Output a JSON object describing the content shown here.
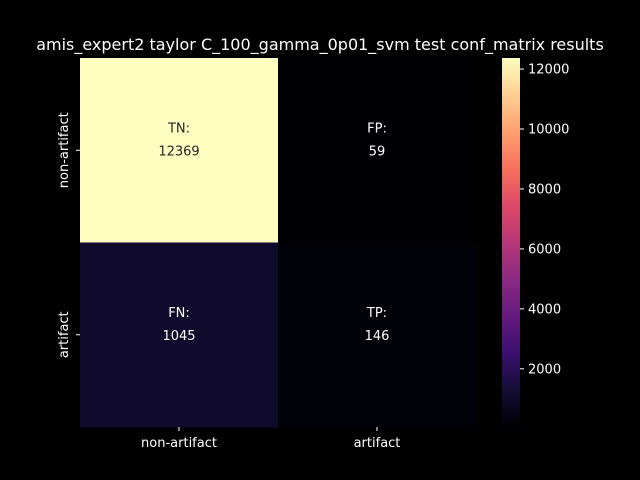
{
  "chart_data": {
    "type": "heatmap",
    "title": "amis_expert2 taylor C_100_gamma_0p01_svm test conf_matrix results",
    "xlabel": "",
    "ylabel": "",
    "x_categories": [
      "non-artifact",
      "artifact"
    ],
    "y_categories": [
      "non-artifact",
      "artifact"
    ],
    "cells": [
      [
        {
          "label": "TN:",
          "value": 12369
        },
        {
          "label": "FP:",
          "value": 59
        }
      ],
      [
        {
          "label": "FN:",
          "value": 1045
        },
        {
          "label": "TP:",
          "value": 146
        }
      ]
    ],
    "colormap": "magma",
    "colorbar": {
      "range": [
        59,
        12369
      ],
      "ticks": [
        2000,
        4000,
        6000,
        8000,
        10000,
        12000
      ]
    },
    "grid": false,
    "colors": {
      "background": "#000000",
      "text": "#ffffff"
    }
  }
}
